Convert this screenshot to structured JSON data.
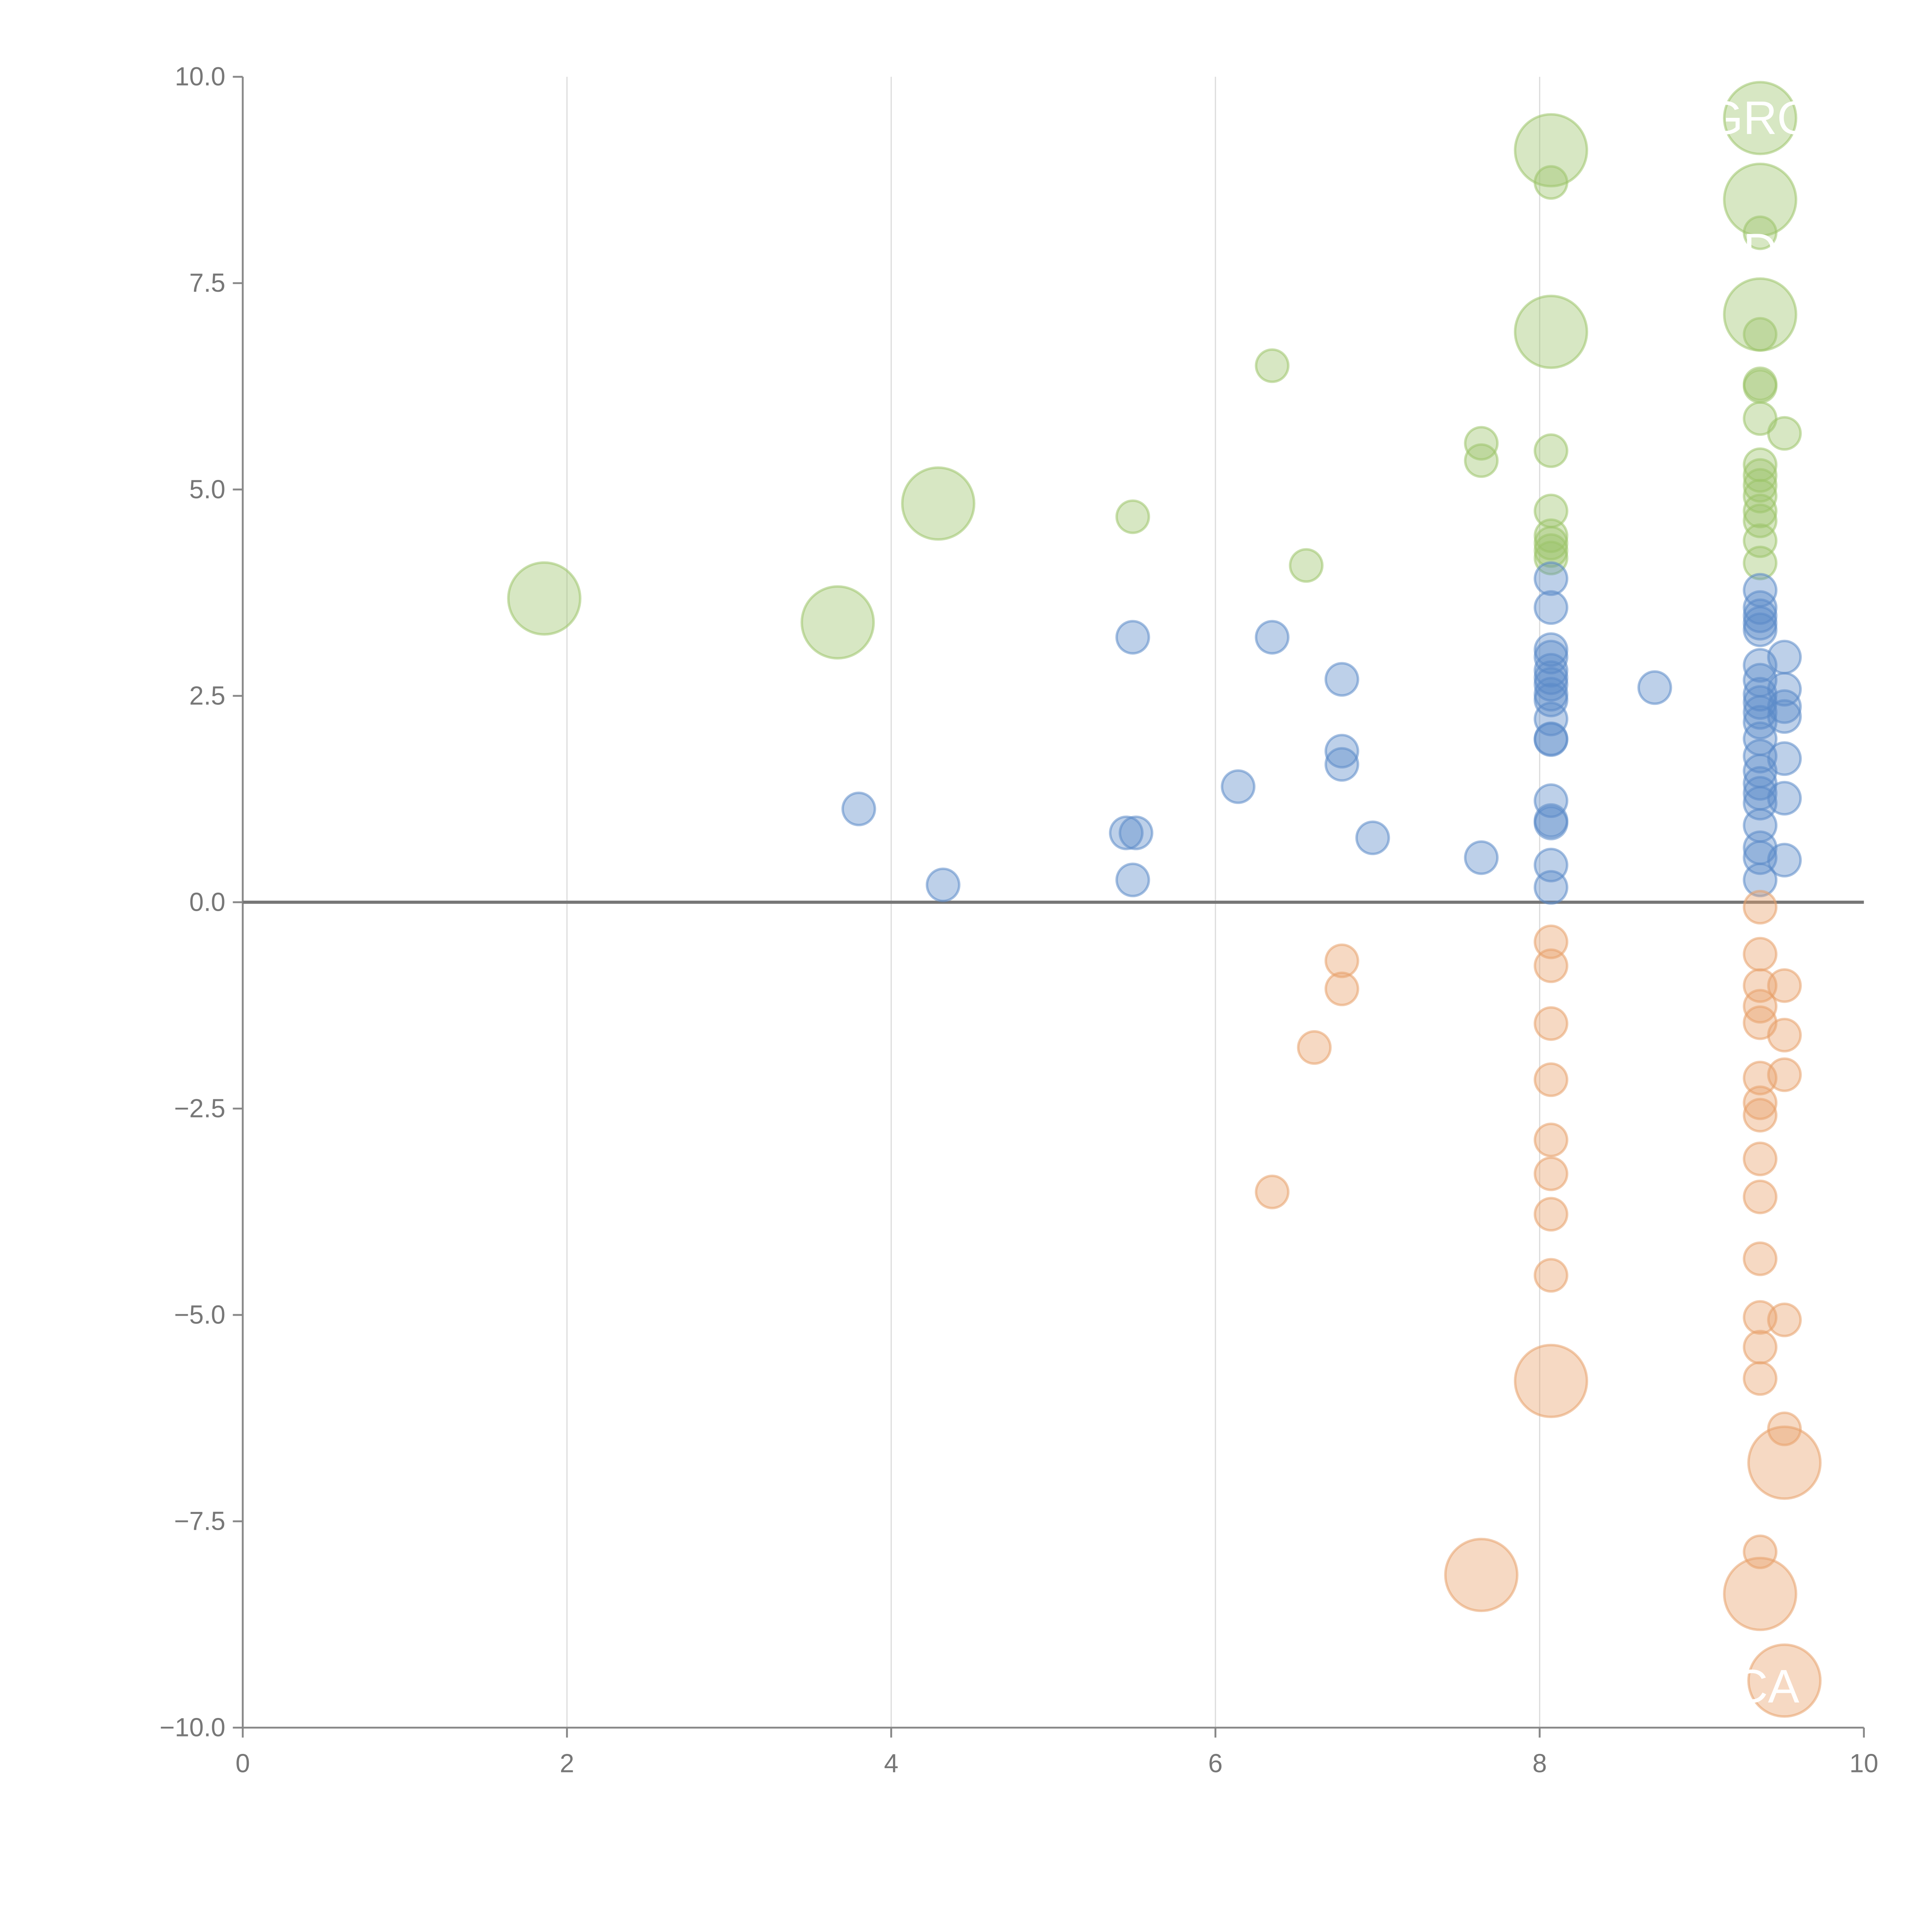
{
  "chart_data": {
    "type": "scatter",
    "title": "",
    "xlabel": "",
    "ylabel": "",
    "xlim": [
      0,
      10
    ],
    "ylim": [
      -10,
      10
    ],
    "x_ticks": [
      "0",
      "2",
      "4",
      "6",
      "8",
      "10"
    ],
    "y_ticks": [
      "10.0",
      "7.5",
      "5.0",
      "2.5",
      "0.0",
      "−2.5",
      "−5.0",
      "−7.5",
      "−10.0"
    ],
    "x_tick_values": [
      0,
      2,
      4,
      6,
      8,
      10
    ],
    "y_tick_values": [
      10,
      7.5,
      5,
      2.5,
      0,
      -2.5,
      -5,
      -7.5,
      -10
    ],
    "grid": "vertical",
    "colors": {
      "green": "#9cc46a",
      "blue": "#5b8ac8",
      "orange": "#e8a06a",
      "axis": "#888888",
      "grid": "#dddddd"
    },
    "annotations": [
      {
        "text": "GRO",
        "x": 9.36,
        "y": 9.5
      },
      {
        "text": "D",
        "x": 9.36,
        "y": 7.9
      },
      {
        "text": "CA",
        "x": 9.4,
        "y": -9.5
      }
    ],
    "series": [
      {
        "name": "green",
        "color": "#9cc46a",
        "points": [
          [
            1.86,
            3.68,
            3
          ],
          [
            3.67,
            3.39,
            3
          ],
          [
            4.29,
            4.83,
            3
          ],
          [
            5.49,
            4.67,
            1
          ],
          [
            6.35,
            6.5,
            1
          ],
          [
            6.56,
            4.08,
            1
          ],
          [
            7.64,
            5.56,
            1
          ],
          [
            7.64,
            5.35,
            1
          ],
          [
            8.07,
            9.11,
            3
          ],
          [
            8.07,
            8.72,
            1
          ],
          [
            8.07,
            6.91,
            3
          ],
          [
            8.07,
            5.47,
            1
          ],
          [
            8.07,
            4.74,
            1
          ],
          [
            8.07,
            4.44,
            1
          ],
          [
            8.07,
            4.35,
            1
          ],
          [
            8.07,
            4.26,
            1
          ],
          [
            8.07,
            4.17,
            1
          ],
          [
            9.36,
            9.5,
            3
          ],
          [
            9.36,
            8.51,
            3
          ],
          [
            9.36,
            8.11,
            1
          ],
          [
            9.36,
            7.12,
            3
          ],
          [
            9.36,
            6.88,
            1
          ],
          [
            9.36,
            6.28,
            1
          ],
          [
            9.36,
            6.25,
            1
          ],
          [
            9.36,
            5.86,
            1
          ],
          [
            9.51,
            5.68,
            1
          ],
          [
            9.36,
            5.3,
            1
          ],
          [
            9.36,
            5.17,
            1
          ],
          [
            9.36,
            5.05,
            1
          ],
          [
            9.36,
            4.92,
            1
          ],
          [
            9.36,
            4.74,
            1
          ],
          [
            9.36,
            4.62,
            1
          ],
          [
            9.36,
            4.38,
            1
          ],
          [
            9.36,
            4.11,
            1
          ]
        ]
      },
      {
        "name": "blue",
        "color": "#5b8ac8",
        "points": [
          [
            3.8,
            1.13,
            1
          ],
          [
            4.32,
            0.21,
            1
          ],
          [
            5.49,
            3.21,
            1
          ],
          [
            5.49,
            0.27,
            1
          ],
          [
            5.45,
            0.84,
            1
          ],
          [
            5.51,
            0.84,
            1
          ],
          [
            6.14,
            1.4,
            1
          ],
          [
            6.35,
            3.21,
            1
          ],
          [
            6.78,
            2.7,
            1
          ],
          [
            6.78,
            1.83,
            1
          ],
          [
            6.78,
            1.67,
            1
          ],
          [
            6.97,
            0.78,
            1
          ],
          [
            7.64,
            0.54,
            1
          ],
          [
            8.71,
            2.6,
            1
          ],
          [
            8.07,
            3.92,
            1
          ],
          [
            8.07,
            3.57,
            1
          ],
          [
            8.07,
            3.06,
            1
          ],
          [
            8.07,
            2.97,
            1
          ],
          [
            8.07,
            2.81,
            1
          ],
          [
            8.07,
            2.72,
            1
          ],
          [
            8.07,
            2.64,
            1
          ],
          [
            8.07,
            2.52,
            1
          ],
          [
            8.07,
            2.45,
            1
          ],
          [
            8.07,
            2.22,
            1
          ],
          [
            8.07,
            1.98,
            1
          ],
          [
            8.07,
            1.97,
            1
          ],
          [
            8.07,
            1.23,
            1
          ],
          [
            8.07,
            0.99,
            1
          ],
          [
            8.07,
            0.96,
            1
          ],
          [
            8.07,
            0.45,
            1
          ],
          [
            8.07,
            0.18,
            1
          ],
          [
            9.36,
            3.78,
            1
          ],
          [
            9.36,
            3.57,
            1
          ],
          [
            9.36,
            3.47,
            1
          ],
          [
            9.36,
            3.38,
            1
          ],
          [
            9.36,
            3.3,
            1
          ],
          [
            9.36,
            2.87,
            1
          ],
          [
            9.36,
            2.69,
            1
          ],
          [
            9.36,
            2.52,
            1
          ],
          [
            9.36,
            2.42,
            1
          ],
          [
            9.36,
            2.3,
            1
          ],
          [
            9.36,
            2.18,
            1
          ],
          [
            9.36,
            1.98,
            1
          ],
          [
            9.36,
            1.77,
            1
          ],
          [
            9.36,
            1.59,
            1
          ],
          [
            9.36,
            1.44,
            1
          ],
          [
            9.36,
            1.32,
            1
          ],
          [
            9.36,
            1.2,
            1
          ],
          [
            9.36,
            0.93,
            1
          ],
          [
            9.36,
            0.66,
            1
          ],
          [
            9.36,
            0.54,
            1
          ],
          [
            9.36,
            0.27,
            1
          ],
          [
            9.51,
            2.97,
            1
          ],
          [
            9.51,
            2.58,
            1
          ],
          [
            9.51,
            2.37,
            1
          ],
          [
            9.51,
            2.25,
            1
          ],
          [
            9.51,
            1.74,
            1
          ],
          [
            9.51,
            1.26,
            1
          ],
          [
            9.51,
            0.51,
            1
          ]
        ]
      },
      {
        "name": "orange",
        "color": "#e8a06a",
        "points": [
          [
            6.78,
            -0.71,
            1
          ],
          [
            6.78,
            -1.05,
            1
          ],
          [
            6.61,
            -1.76,
            1
          ],
          [
            6.35,
            -3.51,
            1
          ],
          [
            7.64,
            -8.15,
            3
          ],
          [
            8.07,
            -0.48,
            1
          ],
          [
            8.07,
            -0.77,
            1
          ],
          [
            8.07,
            -1.47,
            1
          ],
          [
            8.07,
            -2.15,
            1
          ],
          [
            8.07,
            -2.88,
            1
          ],
          [
            8.07,
            -3.29,
            1
          ],
          [
            8.07,
            -3.78,
            1
          ],
          [
            8.07,
            -4.52,
            1
          ],
          [
            8.07,
            -5.8,
            3
          ],
          [
            9.36,
            -0.06,
            1
          ],
          [
            9.36,
            -0.63,
            1
          ],
          [
            9.36,
            -1.01,
            1
          ],
          [
            9.36,
            -1.26,
            1
          ],
          [
            9.36,
            -1.46,
            1
          ],
          [
            9.36,
            -2.13,
            1
          ],
          [
            9.36,
            -2.43,
            1
          ],
          [
            9.36,
            -2.58,
            1
          ],
          [
            9.36,
            -3.11,
            1
          ],
          [
            9.36,
            -3.57,
            1
          ],
          [
            9.36,
            -4.32,
            1
          ],
          [
            9.36,
            -5.03,
            1
          ],
          [
            9.36,
            -5.39,
            1
          ],
          [
            9.36,
            -5.77,
            1
          ],
          [
            9.36,
            -7.87,
            1
          ],
          [
            9.36,
            -8.38,
            3
          ],
          [
            9.51,
            -1.01,
            1
          ],
          [
            9.51,
            -1.61,
            1
          ],
          [
            9.51,
            -2.09,
            1
          ],
          [
            9.51,
            -5.06,
            1
          ],
          [
            9.51,
            -6.38,
            1
          ],
          [
            9.51,
            -6.79,
            3
          ],
          [
            9.51,
            -9.43,
            3
          ]
        ]
      }
    ]
  }
}
